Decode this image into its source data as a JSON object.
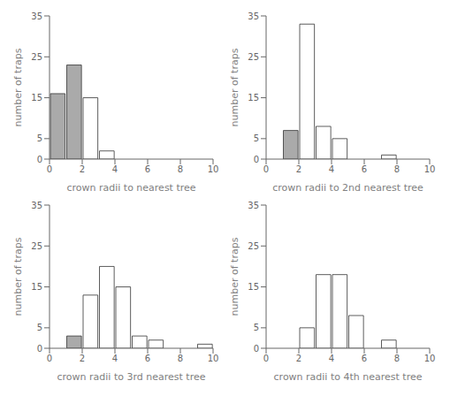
{
  "chart_data": [
    {
      "type": "bar",
      "xlabel": "crown radii to nearest tree",
      "ylabel": "number of traps",
      "x": [
        0.5,
        1.5,
        2.5,
        3.5
      ],
      "values": [
        16,
        23,
        15,
        2
      ],
      "colors": [
        "#aaaaaa",
        "#aaaaaa",
        "#ffffff",
        "#ffffff"
      ],
      "xlim": [
        0,
        10
      ],
      "ylim": [
        0,
        35
      ],
      "xticks": [
        0,
        2,
        4,
        6,
        8,
        10
      ],
      "yticks": [
        0,
        5,
        15,
        25,
        35
      ],
      "grid": false
    },
    {
      "type": "bar",
      "xlabel": "crown radii to 2nd nearest tree",
      "ylabel": "number of traps",
      "x": [
        1.5,
        2.5,
        3.5,
        4.5,
        7.5
      ],
      "values": [
        7,
        33,
        8,
        5,
        1
      ],
      "colors": [
        "#aaaaaa",
        "#ffffff",
        "#ffffff",
        "#ffffff",
        "#ffffff"
      ],
      "xlim": [
        0,
        10
      ],
      "ylim": [
        0,
        35
      ],
      "xticks": [
        0,
        2,
        4,
        6,
        8,
        10
      ],
      "yticks": [
        0,
        5,
        15,
        25,
        35
      ],
      "grid": false
    },
    {
      "type": "bar",
      "xlabel": "crown radii to 3rd nearest tree",
      "ylabel": "number of traps",
      "x": [
        1.5,
        2.5,
        3.5,
        4.5,
        5.5,
        6.5,
        9.5
      ],
      "values": [
        3,
        13,
        20,
        15,
        3,
        2,
        1
      ],
      "colors": [
        "#aaaaaa",
        "#ffffff",
        "#ffffff",
        "#ffffff",
        "#ffffff",
        "#ffffff",
        "#ffffff"
      ],
      "xlim": [
        0,
        10
      ],
      "ylim": [
        0,
        35
      ],
      "xticks": [
        0,
        2,
        4,
        6,
        8,
        10
      ],
      "yticks": [
        0,
        5,
        15,
        25,
        35
      ],
      "grid": false
    },
    {
      "type": "bar",
      "xlabel": "crown radii to 4th nearest tree",
      "ylabel": "number of traps",
      "x": [
        2.5,
        3.5,
        4.5,
        5.5,
        7.5
      ],
      "values": [
        5,
        18,
        18,
        8,
        2
      ],
      "colors": [
        "#ffffff",
        "#ffffff",
        "#ffffff",
        "#ffffff",
        "#ffffff"
      ],
      "xlim": [
        0,
        10
      ],
      "ylim": [
        0,
        35
      ],
      "xticks": [
        0,
        2,
        4,
        6,
        8,
        10
      ],
      "yticks": [
        0,
        5,
        15,
        25,
        35
      ],
      "grid": false
    }
  ]
}
